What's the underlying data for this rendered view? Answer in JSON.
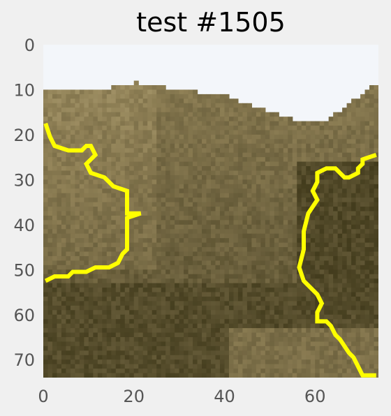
{
  "chart_data": {
    "type": "heatmap",
    "title": "test #1505",
    "xlabel": "",
    "ylabel": "",
    "xlim": [
      0,
      74
    ],
    "ylim": [
      74,
      0
    ],
    "grid": false,
    "x_ticks": [
      "0",
      "20",
      "40",
      "60"
    ],
    "y_ticks": [
      "0",
      "10",
      "20",
      "30",
      "40",
      "50",
      "60",
      "70"
    ],
    "image_description": "Grayscale-sepia photographic tile (mountain ridge under a pale sky) rendered as a 74x74 pixel raster",
    "sky_rows": [
      0,
      10
    ],
    "colormap": [
      "#f3f6fa",
      "#b5a577",
      "#8e7f55",
      "#6a5f3c",
      "#433c1d"
    ],
    "overlay": {
      "color": "#ffff00",
      "contours": [
        {
          "name": "left-region-boundary",
          "points": [
            [
              0,
              17
            ],
            [
              1,
              20
            ],
            [
              2,
              22
            ],
            [
              5,
              23
            ],
            [
              8,
              23
            ],
            [
              9,
              22
            ],
            [
              10,
              22
            ],
            [
              11,
              24
            ],
            [
              9,
              26
            ],
            [
              10,
              28
            ],
            [
              13,
              29
            ],
            [
              15,
              31
            ],
            [
              18,
              32
            ],
            [
              18,
              34
            ],
            [
              18,
              37
            ],
            [
              21,
              37
            ],
            [
              18,
              38
            ],
            [
              18,
              42
            ],
            [
              18,
              45
            ],
            [
              17,
              46
            ],
            [
              16,
              48
            ],
            [
              14,
              49
            ],
            [
              11,
              49
            ],
            [
              9,
              50
            ],
            [
              6,
              50
            ],
            [
              5,
              51
            ],
            [
              2,
              51
            ],
            [
              0,
              52
            ]
          ]
        },
        {
          "name": "right-region-boundary",
          "points": [
            [
              73,
              24
            ],
            [
              70,
              25
            ],
            [
              70,
              26
            ],
            [
              69,
              27
            ],
            [
              69,
              28
            ],
            [
              67,
              29
            ],
            [
              66,
              29
            ],
            [
              64,
              27
            ],
            [
              62,
              27
            ],
            [
              60,
              28
            ],
            [
              60,
              30
            ],
            [
              59,
              32
            ],
            [
              60,
              34
            ],
            [
              58,
              37
            ],
            [
              57,
              41
            ],
            [
              57,
              45
            ],
            [
              56,
              49
            ],
            [
              57,
              52
            ],
            [
              59,
              54
            ],
            [
              60,
              55
            ],
            [
              61,
              57
            ],
            [
              60,
              59
            ],
            [
              60,
              61
            ],
            [
              62,
              61
            ],
            [
              63,
              62
            ],
            [
              64,
              64
            ],
            [
              65,
              65
            ],
            [
              67,
              68
            ],
            [
              68,
              69
            ],
            [
              69,
              71
            ],
            [
              70,
              73
            ],
            [
              71,
              73
            ],
            [
              73,
              73
            ]
          ]
        }
      ]
    }
  }
}
